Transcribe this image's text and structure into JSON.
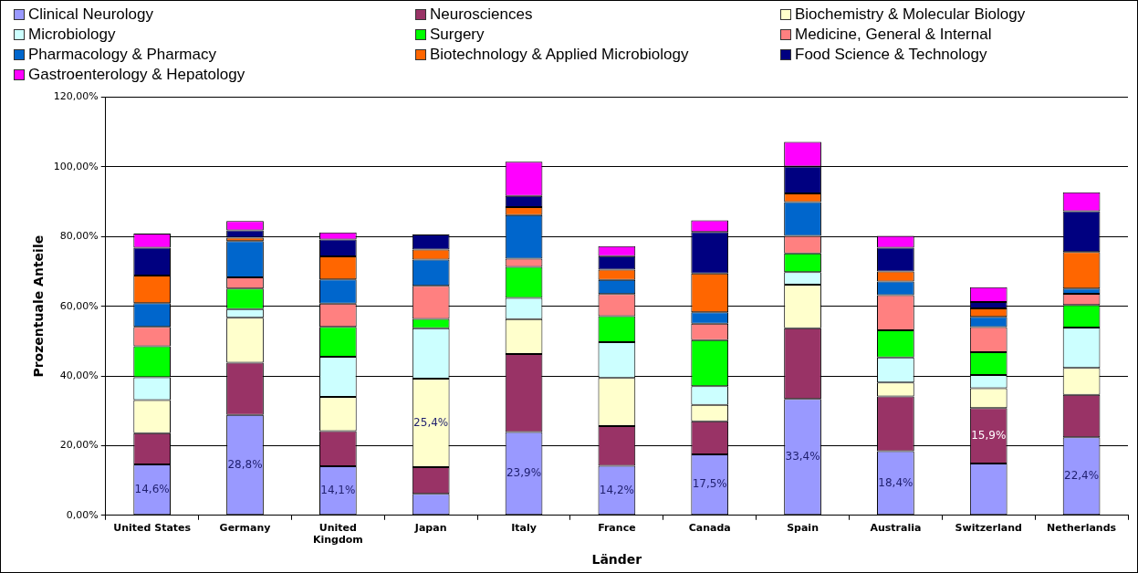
{
  "chart_data": {
    "type": "bar",
    "stacked": true,
    "xlabel": "Länder",
    "ylabel": "Prozentuale Anteile",
    "categories": [
      "United States",
      "Germany",
      "United Kingdom",
      "Japan",
      "Italy",
      "France",
      "Canada",
      "Spain",
      "Australia",
      "Switzerland",
      "Netherlands"
    ],
    "ylim": [
      0,
      120
    ],
    "yticks": [
      {
        "value": 0,
        "label": "0,00%"
      },
      {
        "value": 20,
        "label": "20,00%"
      },
      {
        "value": 40,
        "label": "40,00%"
      },
      {
        "value": 60,
        "label": "60,00%"
      },
      {
        "value": 80,
        "label": "80,00%"
      },
      {
        "value": 100,
        "label": "100,00%"
      },
      {
        "value": 120,
        "label": "120,00%"
      }
    ],
    "grid": "y",
    "legend": "top",
    "series": [
      {
        "name": "Clinical Neurology",
        "color": "#9999ff",
        "values": [
          14.6,
          28.8,
          14.1,
          6.2,
          23.9,
          14.2,
          17.5,
          33.4,
          18.4,
          14.9,
          22.4
        ],
        "value_labels": [
          "14,6%",
          "28,8%",
          "14,1%",
          null,
          "23,9%",
          "14,2%",
          "17,5%",
          "33,4%",
          "18,4%",
          null,
          "22,4%"
        ]
      },
      {
        "name": "Neurosciences",
        "color": "#993366",
        "values": [
          9.0,
          15.0,
          10.1,
          7.6,
          22.4,
          11.4,
          9.5,
          20.3,
          15.7,
          15.9,
          12.2
        ],
        "value_labels": [
          null,
          null,
          null,
          null,
          null,
          null,
          null,
          null,
          null,
          "15,9%",
          null
        ]
      },
      {
        "name": "Biochemistry & Molecular Biology",
        "color": "#ffffcc",
        "values": [
          9.5,
          12.9,
          9.8,
          25.4,
          10.0,
          13.8,
          4.7,
          12.5,
          4.0,
          5.7,
          7.7
        ],
        "value_labels": [
          null,
          null,
          null,
          "25,4%",
          null,
          null,
          null,
          null,
          null,
          null,
          null
        ]
      },
      {
        "name": "Microbiology",
        "color": "#ccffff",
        "values": [
          6.5,
          2.5,
          11.5,
          14.5,
          6.1,
          10.3,
          5.4,
          3.6,
          7.2,
          3.8,
          11.6
        ]
      },
      {
        "name": "Surgery",
        "color": "#00ff00",
        "values": [
          8.9,
          5.9,
          8.6,
          2.7,
          8.9,
          7.5,
          13.2,
          5.4,
          7.8,
          6.5,
          6.5
        ]
      },
      {
        "name": "Medicine, General & Internal",
        "color": "#ff8080",
        "values": [
          5.6,
          3.2,
          6.7,
          9.5,
          2.4,
          6.3,
          4.7,
          5.0,
          10.1,
          7.2,
          3.2
        ]
      },
      {
        "name": "Pharmacology & Pharmacy",
        "color": "#0066cc",
        "values": [
          6.8,
          10.4,
          6.9,
          7.5,
          12.5,
          4.1,
          3.3,
          9.7,
          3.9,
          3.0,
          1.5
        ]
      },
      {
        "name": "Biotechnology & Applied Microbiology",
        "color": "#ff6600",
        "values": [
          7.9,
          1.0,
          6.6,
          2.9,
          2.3,
          2.9,
          11.1,
          2.5,
          2.9,
          2.4,
          10.5
        ]
      },
      {
        "name": "Food Science & Technology",
        "color": "#000080",
        "values": [
          8.0,
          2.1,
          4.9,
          4.3,
          3.2,
          3.9,
          11.9,
          7.7,
          6.8,
          1.8,
          11.7
        ]
      },
      {
        "name": "Gastroenterology & Hepatology",
        "color": "#ff00ff",
        "values": [
          4.1,
          2.7,
          2.0,
          null,
          9.8,
          2.9,
          3.4,
          7.1,
          3.4,
          4.3,
          5.4
        ]
      }
    ]
  }
}
